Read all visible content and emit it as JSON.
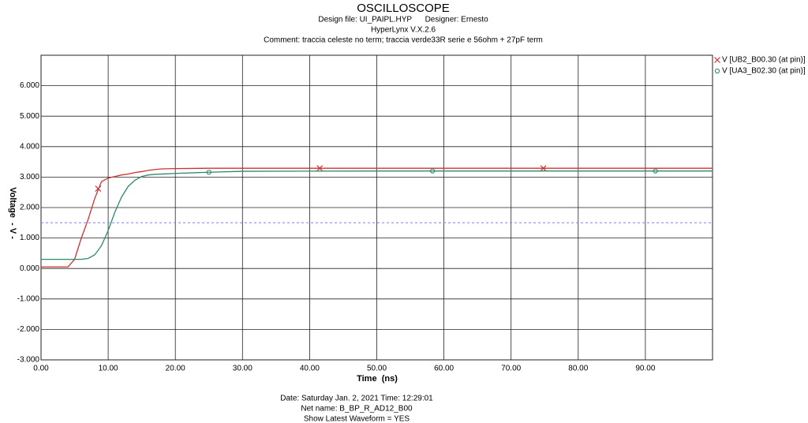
{
  "chart_data": {
    "type": "line",
    "title": "OSCILLOSCOPE",
    "subtitle": [
      "Design file: UI_PAIPL.HYP      Designer: Ernesto",
      "HyperLynx V.X.2.6",
      "Comment: traccia celeste no term; traccia verde33R serie e 56ohm + 27pF term"
    ],
    "xlabel": "Time  (ns)",
    "ylabel": "Voltage  - V -",
    "footer": [
      "Date: Saturday Jan. 2, 2021  Time: 12:29:01",
      "Net name: B_BP_R_AD12_B00",
      "Show Latest Waveform = YES"
    ],
    "x": [
      0,
      4,
      5,
      6,
      7,
      8,
      9,
      10,
      11,
      12,
      13,
      14,
      15,
      16,
      17,
      18,
      20,
      25,
      30,
      50,
      100
    ],
    "series": [
      {
        "name": "V [UB2_B00.30 (at pin)]",
        "color": "#d03030",
        "marker": "x",
        "values": [
          0.05,
          0.05,
          0.3,
          1.0,
          1.6,
          2.3,
          2.85,
          2.97,
          3.02,
          3.07,
          3.1,
          3.15,
          3.18,
          3.22,
          3.25,
          3.27,
          3.28,
          3.29,
          3.29,
          3.29,
          3.29
        ],
        "markers": {
          "x": [
            8.5,
            41.5,
            74.8
          ],
          "values": [
            2.62,
            3.29,
            3.29
          ]
        }
      },
      {
        "name": "V [UA3_B02.30 (at pin)]",
        "color": "#2e8b6a",
        "marker": "o",
        "values": [
          0.3,
          0.3,
          0.3,
          0.3,
          0.33,
          0.45,
          0.75,
          1.25,
          1.85,
          2.35,
          2.7,
          2.9,
          3.02,
          3.07,
          3.09,
          3.1,
          3.12,
          3.16,
          3.19,
          3.2,
          3.2
        ],
        "markers": {
          "x": [
            25,
            58.3,
            91.5
          ],
          "values": [
            3.16,
            3.2,
            3.2
          ]
        }
      }
    ],
    "threshold": 1.5,
    "threshold_color": "#8080e0",
    "xlim": [
      0,
      100
    ],
    "ylim": [
      -3,
      7
    ],
    "xticks": [
      {
        "value": 0,
        "label": "0.00"
      },
      {
        "value": 10,
        "label": "10.00"
      },
      {
        "value": 20,
        "label": "20.00"
      },
      {
        "value": 30,
        "label": "30.00"
      },
      {
        "value": 40,
        "label": "40.00"
      },
      {
        "value": 50,
        "label": "50.00"
      },
      {
        "value": 60,
        "label": "60.00"
      },
      {
        "value": 70,
        "label": "70.00"
      },
      {
        "value": 80,
        "label": "80.00"
      },
      {
        "value": 90,
        "label": "90.00"
      }
    ],
    "yticks": [
      {
        "value": -3,
        "label": "-3.000"
      },
      {
        "value": -2,
        "label": "-2.000"
      },
      {
        "value": -1,
        "label": "-1.000"
      },
      {
        "value": 0,
        "label": "0.000"
      },
      {
        "value": 1,
        "label": "1.000"
      },
      {
        "value": 2,
        "label": "2.000"
      },
      {
        "value": 3,
        "label": "3.000"
      },
      {
        "value": 4,
        "label": "4.000"
      },
      {
        "value": 5,
        "label": "5.000"
      },
      {
        "value": 6,
        "label": "6.000"
      }
    ],
    "grid": true,
    "legend": "right"
  }
}
